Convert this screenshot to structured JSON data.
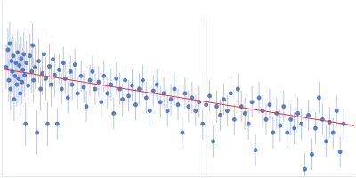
{
  "chart_data": {
    "type": "scatter",
    "x": [
      5,
      7,
      8,
      9,
      10,
      11,
      12,
      13,
      14,
      15,
      16,
      17,
      18,
      19,
      20,
      21,
      22,
      23,
      24,
      25,
      26,
      27,
      28,
      30,
      32,
      34,
      35,
      36,
      38,
      40,
      42,
      44,
      46,
      48,
      50,
      52,
      54,
      56,
      58,
      60,
      63,
      65,
      68,
      70,
      72,
      75,
      78,
      80,
      83,
      86,
      90,
      93,
      96,
      100,
      103,
      106,
      110,
      113,
      116,
      120,
      124,
      127,
      130,
      134,
      137,
      140,
      144,
      148,
      152,
      156,
      160,
      164,
      168,
      172,
      176,
      180,
      184,
      188,
      192,
      196,
      200,
      205,
      208,
      212,
      216,
      220,
      224,
      228,
      232,
      236,
      240,
      244,
      248,
      252,
      256,
      260,
      264,
      268,
      272,
      276,
      280,
      284,
      288,
      292,
      296,
      300,
      304,
      308,
      312,
      316,
      320,
      324,
      328,
      332,
      336,
      340,
      344,
      348,
      352,
      356,
      360,
      364,
      368,
      372,
      376,
      380,
      384,
      388
    ],
    "values": [
      125,
      145,
      110,
      152,
      100,
      132,
      120,
      138,
      88,
      115,
      130,
      105,
      142,
      112,
      127,
      95,
      135,
      108,
      122,
      140,
      116,
      60,
      130,
      104,
      138,
      120,
      150,
      110,
      125,
      50,
      132,
      100,
      118,
      140,
      112,
      60,
      126,
      105,
      134,
      116,
      60,
      122,
      100,
      130,
      112,
      90,
      120,
      105,
      128,
      95,
      115,
      102,
      80,
      110,
      120,
      100,
      108,
      85,
      115,
      95,
      105,
      72,
      112,
      100,
      88,
      110,
      92,
      104,
      82,
      100,
      110,
      90,
      75,
      98,
      105,
      85,
      95,
      75,
      88,
      100,
      82,
      50,
      95,
      80,
      90,
      75,
      85,
      60,
      82,
      92,
      40,
      80,
      70,
      88,
      75,
      95,
      65,
      100,
      80,
      72,
      60,
      85,
      30,
      90,
      75,
      65,
      82,
      50,
      72,
      58,
      80,
      50,
      65,
      55,
      72,
      60,
      8,
      70,
      25,
      55,
      90,
      65,
      40,
      62,
      50,
      75,
      28,
      60
    ],
    "errors": [
      25,
      25,
      25,
      25,
      25,
      25,
      25,
      25,
      25,
      25,
      25,
      25,
      25,
      25,
      25,
      25,
      25,
      25,
      25,
      25,
      25,
      25,
      25,
      25,
      25,
      25,
      25,
      25,
      25,
      25,
      25,
      25,
      25,
      25,
      25,
      25,
      25,
      25,
      25,
      25,
      18,
      18,
      18,
      18,
      18,
      18,
      18,
      18,
      18,
      18,
      18,
      18,
      18,
      18,
      18,
      18,
      18,
      18,
      18,
      18,
      18,
      18,
      18,
      18,
      18,
      18,
      18,
      18,
      18,
      18,
      18,
      18,
      18,
      18,
      18,
      18,
      18,
      18,
      18,
      18,
      18,
      18,
      18,
      18,
      18,
      18,
      18,
      18,
      100,
      18,
      18,
      18,
      18,
      18,
      18,
      18,
      18,
      18,
      18,
      18,
      18,
      18,
      18,
      18,
      18,
      18,
      18,
      18,
      18,
      18,
      18,
      18,
      18,
      18,
      18,
      18,
      18,
      18,
      18,
      18,
      18,
      18,
      18,
      18,
      18,
      18,
      18,
      18
    ],
    "color": "#3a62b9",
    "fit": {
      "type": "line",
      "x": [
        0,
        400
      ],
      "values": [
        123,
        58
      ],
      "color": "#e0304a"
    },
    "xlim": [
      0,
      400
    ],
    "ylim": [
      0,
      200
    ],
    "tick_labels": false,
    "grid": false
  }
}
